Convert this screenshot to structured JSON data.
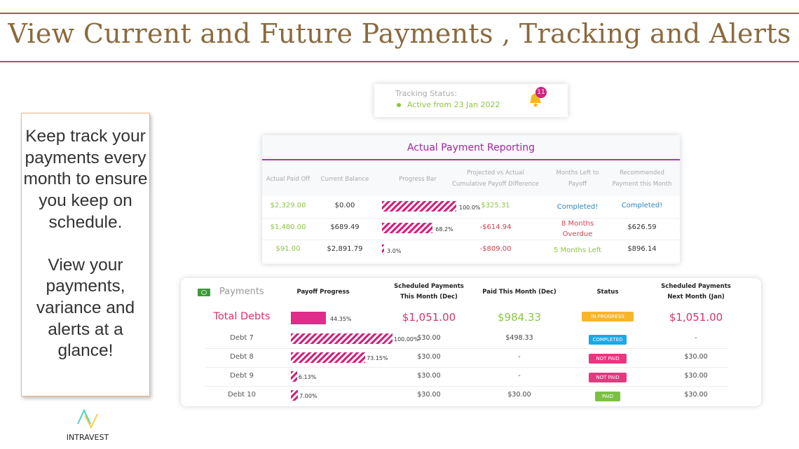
{
  "title": "View Current and Future Payments , Tracking and Alerts",
  "left_text": {
    "p1": "Keep track your payments every month to ensure you keep on schedule.",
    "p2": "View your payments, variance and alerts at a glance!"
  },
  "logo": {
    "name": "INTRAVEST"
  },
  "tracking": {
    "label": "Tracking Status:",
    "status": "Active from 23 Jan 2022",
    "alert_count": "11"
  },
  "reporting": {
    "title": "Actual Payment Reporting",
    "headers": [
      "Actual Paid Off",
      "Current Balance",
      "Progress Bar",
      "Projected vs Actual Cumulative Payoff Difference",
      "Months Left to Payoff",
      "Recommended Payment this Month"
    ],
    "rows": [
      {
        "paid": "$2,329.00",
        "balance": "$0.00",
        "progress": 100.0,
        "progress_label": "100.0%",
        "diff": "$325.31",
        "months": "Completed!",
        "recommended": "Completed!"
      },
      {
        "paid": "$1,480.00",
        "balance": "$689.49",
        "progress": 68.2,
        "progress_label": "68.2%",
        "diff": "-$614.94",
        "months": "8 Months Overdue",
        "recommended": "$626.59"
      },
      {
        "paid": "$91.00",
        "balance": "$2,891.79",
        "progress": 3.0,
        "progress_label": "3.0%",
        "diff": "-$809.00",
        "months": "5 Months Left",
        "recommended": "$896.14"
      }
    ]
  },
  "payments": {
    "title": "Payments",
    "headers": [
      "Payoff Progress",
      "Scheduled Payments This Month (Dec)",
      "Paid This Month (Dec)",
      "Status",
      "Scheduled Payments Next Month (Jan)"
    ],
    "total": {
      "name": "Total Debts",
      "progress": 44.35,
      "progress_label": "44.35%",
      "scheduled": "$1,051.00",
      "paid": "$984.33",
      "status": "IN PROGRESS",
      "next": "$1,051.00"
    },
    "rows": [
      {
        "name": "Debt 7",
        "progress": 100,
        "progress_label": "100.00%",
        "scheduled": "$30.00",
        "paid": "$498.33",
        "status": "COMPLETED",
        "next": "-"
      },
      {
        "name": "Debt 8",
        "progress": 73.15,
        "progress_label": "73.15%",
        "scheduled": "$30.00",
        "paid": "-",
        "status": "NOT PAID",
        "next": "$30.00"
      },
      {
        "name": "Debt 9",
        "progress": 6.13,
        "progress_label": "6.13%",
        "scheduled": "$30.00",
        "paid": "-",
        "status": "NOT PAID",
        "next": "$30.00"
      },
      {
        "name": "Debt 10",
        "progress": 7.0,
        "progress_label": "7.00%",
        "scheduled": "$30.00",
        "paid": "$30.00",
        "status": "PAID",
        "next": "$30.00"
      }
    ]
  },
  "colors": {
    "IN PROGRESS": "#f7b52c",
    "COMPLETED": "#18a9e6",
    "NOT PAID": "#e8367f",
    "PAID": "#7ac143"
  }
}
